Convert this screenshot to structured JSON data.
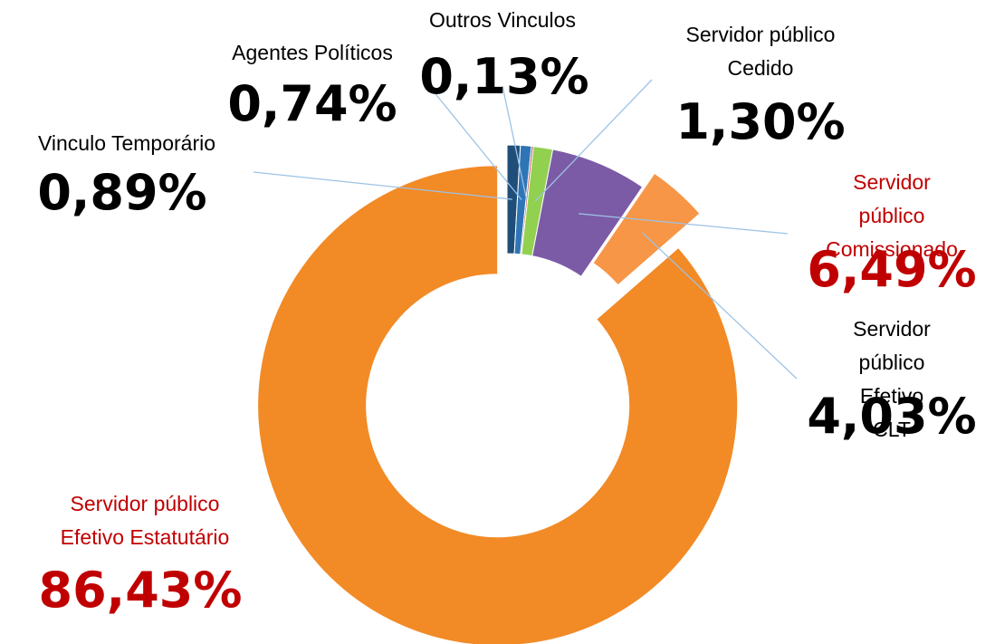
{
  "chart_data": {
    "type": "donut",
    "categories": [
      "Vinculo Temporário",
      "Agentes Políticos",
      "Outros Vinculos",
      "Servidor público\nCedido",
      "Servidor público\nComissionado",
      "Servidor público\nEfetivo CLT",
      "Servidor público\nEfetivo Estatutário"
    ],
    "values": [
      0.89,
      0.74,
      0.13,
      1.3,
      6.49,
      4.03,
      86.43
    ],
    "value_labels": [
      "0,89%",
      "0,74%",
      "0,13%",
      "1,30%",
      "6,49%",
      "4,03%",
      "86,43%"
    ],
    "colors": [
      "#1f4e79",
      "#2e75b6",
      "#c0504d",
      "#92d050",
      "#7b5ba6",
      "#f79646",
      "#f28a26"
    ],
    "label_colors": [
      "#000000",
      "#000000",
      "#000000",
      "#000000",
      "#c00000",
      "#000000",
      "#c00000"
    ]
  }
}
